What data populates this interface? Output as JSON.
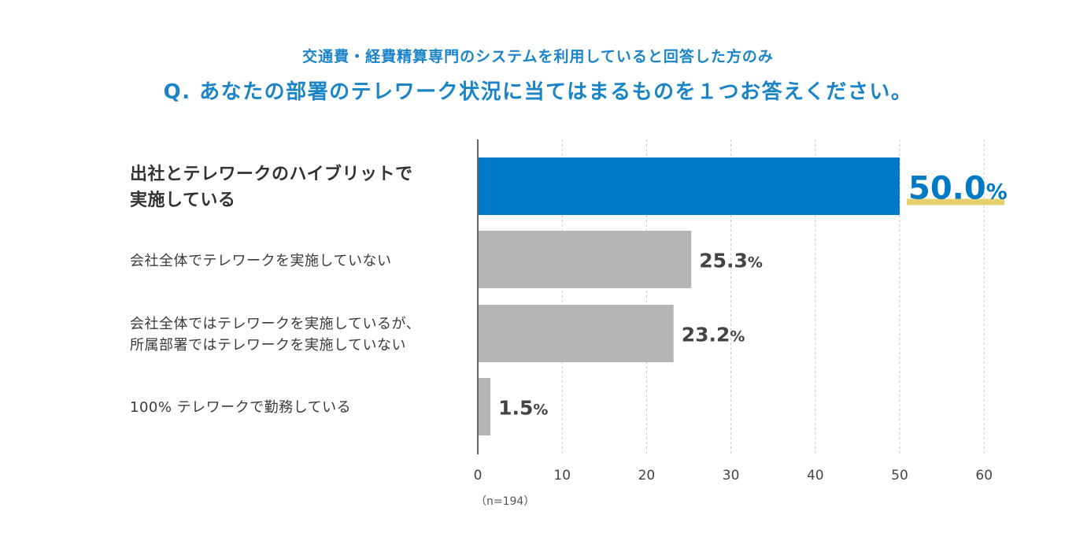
{
  "header": {
    "subtitle": "交通費・経費精算専門のシステムを利用していると回答した方のみ",
    "title": "Q. あなたの部署のテレワーク状況に当てはまるものを１つお答えください。"
  },
  "sample_note": "（n=194）",
  "colors": {
    "title": "#1a84c9",
    "highlight_bar": "#0079c6",
    "bar": "#b5b5b5",
    "highlight_value": "#0079c6",
    "value": "#444444",
    "underline": "#e8cf6e",
    "axis": "#666666",
    "grid": "#c8c8c8"
  },
  "chart_data": {
    "type": "bar",
    "orientation": "horizontal",
    "categories": [
      "出社とテレワークのハイブリットで\n実施している",
      "会社全体でテレワークを実施していない",
      "会社全体ではテレワークを実施しているが、\n所属部署ではテレワークを実施していない",
      "100% テレワークで勤務している"
    ],
    "values": [
      50.0,
      25.3,
      23.2,
      1.5
    ],
    "value_labels": [
      "50.0",
      "25.3",
      "23.2",
      "1.5"
    ],
    "value_unit": "%",
    "highlight_index": 0,
    "xlim": [
      0,
      60
    ],
    "xticks": [
      0,
      10,
      20,
      30,
      40,
      50,
      60
    ],
    "grid": "vertical dashed"
  }
}
